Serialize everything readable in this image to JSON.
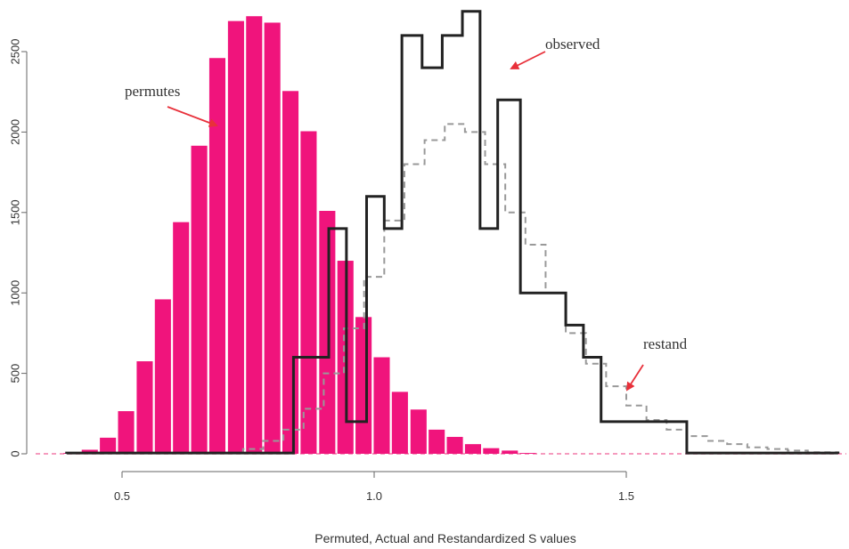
{
  "chart_data": {
    "type": "bar",
    "title": "",
    "xlabel": "Permuted, Actual and Restandardized S values",
    "ylabel": "",
    "xlim": [
      0.37,
      1.92
    ],
    "ylim": [
      0,
      2750
    ],
    "x_ticks": [
      {
        "value": 0.5,
        "label": "0.5"
      },
      {
        "value": 1.0,
        "label": "1.0"
      },
      {
        "value": 1.5,
        "label": "1.5"
      }
    ],
    "y_ticks": [
      {
        "value": 0,
        "label": "0"
      },
      {
        "value": 500,
        "label": "500"
      },
      {
        "value": 1000,
        "label": "1000"
      },
      {
        "value": 1500,
        "label": "1500"
      },
      {
        "value": 2000,
        "label": "2000"
      },
      {
        "value": 2500,
        "label": "2500"
      }
    ],
    "series": [
      {
        "name": "permutes",
        "style": "bars",
        "color": "#f0147c",
        "bin_width": 0.0362,
        "x": [
          0.4,
          0.436,
          0.472,
          0.508,
          0.545,
          0.581,
          0.617,
          0.653,
          0.689,
          0.726,
          0.762,
          0.798,
          0.834,
          0.87,
          0.907,
          0.943,
          0.979,
          1.015,
          1.051,
          1.088,
          1.124,
          1.16,
          1.196,
          1.232,
          1.269,
          1.305
        ],
        "values": [
          5,
          25,
          100,
          265,
          575,
          960,
          1440,
          1915,
          2460,
          2690,
          2720,
          2680,
          2255,
          2005,
          1510,
          1200,
          850,
          600,
          385,
          275,
          150,
          105,
          60,
          35,
          20,
          5
        ]
      },
      {
        "name": "observed",
        "style": "step",
        "color": "#222222",
        "edges": [
          0.39,
          0.84,
          0.91,
          0.945,
          0.985,
          1.02,
          1.055,
          1.095,
          1.135,
          1.175,
          1.21,
          1.245,
          1.29,
          1.325,
          1.38,
          1.415,
          1.45,
          1.49,
          1.62,
          1.92
        ],
        "values": [
          5,
          600,
          1400,
          200,
          1600,
          1400,
          2600,
          2400,
          2600,
          2750,
          1400,
          2200,
          1000,
          1000,
          800,
          600,
          200,
          200,
          5
        ]
      },
      {
        "name": "restand",
        "style": "dashed-step",
        "color": "#999999",
        "edges": [
          0.74,
          0.78,
          0.82,
          0.86,
          0.9,
          0.94,
          0.98,
          1.02,
          1.06,
          1.1,
          1.14,
          1.18,
          1.22,
          1.26,
          1.3,
          1.34,
          1.38,
          1.42,
          1.46,
          1.5,
          1.54,
          1.58,
          1.62,
          1.66,
          1.7,
          1.74,
          1.78,
          1.82,
          1.86,
          1.92
        ],
        "values": [
          30,
          80,
          150,
          280,
          500,
          780,
          1100,
          1450,
          1800,
          1950,
          2050,
          2000,
          1800,
          1500,
          1300,
          1000,
          750,
          560,
          420,
          300,
          210,
          150,
          110,
          80,
          60,
          40,
          30,
          20,
          10
        ]
      }
    ],
    "annotations": [
      {
        "text": "permutes",
        "target": "permutes"
      },
      {
        "text": "observed",
        "target": "observed"
      },
      {
        "text": "restand",
        "target": "restand"
      }
    ],
    "arrow_color": "#e8303a",
    "baseline_color": "#f27aa8"
  }
}
